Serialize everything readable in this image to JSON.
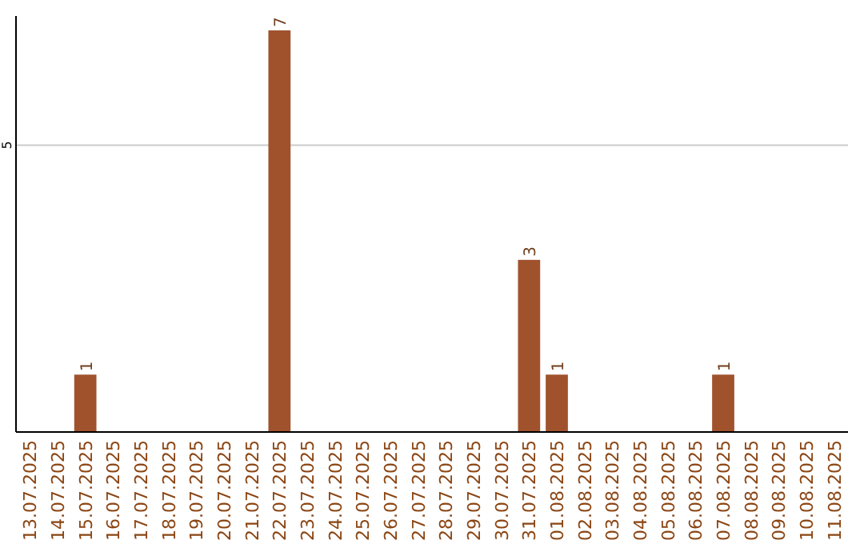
{
  "chart_data": {
    "type": "bar",
    "categories": [
      "13.07.2025",
      "14.07.2025",
      "15.07.2025",
      "16.07.2025",
      "17.07.2025",
      "18.07.2025",
      "19.07.2025",
      "20.07.2025",
      "21.07.2025",
      "22.07.2025",
      "23.07.2025",
      "24.07.2025",
      "25.07.2025",
      "26.07.2025",
      "27.07.2025",
      "28.07.2025",
      "29.07.2025",
      "30.07.2025",
      "31.07.2025",
      "01.08.2025",
      "02.08.2025",
      "03.08.2025",
      "04.08.2025",
      "05.08.2025",
      "06.08.2025",
      "07.08.2025",
      "08.08.2025",
      "09.08.2025",
      "10.08.2025",
      "11.08.2025"
    ],
    "values": [
      0,
      0,
      1,
      0,
      0,
      0,
      0,
      0,
      0,
      7,
      0,
      0,
      0,
      0,
      0,
      0,
      0,
      0,
      3,
      1,
      0,
      0,
      0,
      0,
      0,
      1,
      0,
      0,
      0,
      0
    ],
    "value_labels": [
      null,
      null,
      "1",
      null,
      null,
      null,
      null,
      null,
      null,
      "7",
      null,
      null,
      null,
      null,
      null,
      null,
      null,
      null,
      "3",
      "1",
      null,
      null,
      null,
      null,
      null,
      "1",
      null,
      null,
      null,
      null
    ],
    "color": "#a0522d",
    "ylim": [
      0,
      7.25
    ],
    "yticks": [
      5
    ],
    "grid": "y"
  }
}
